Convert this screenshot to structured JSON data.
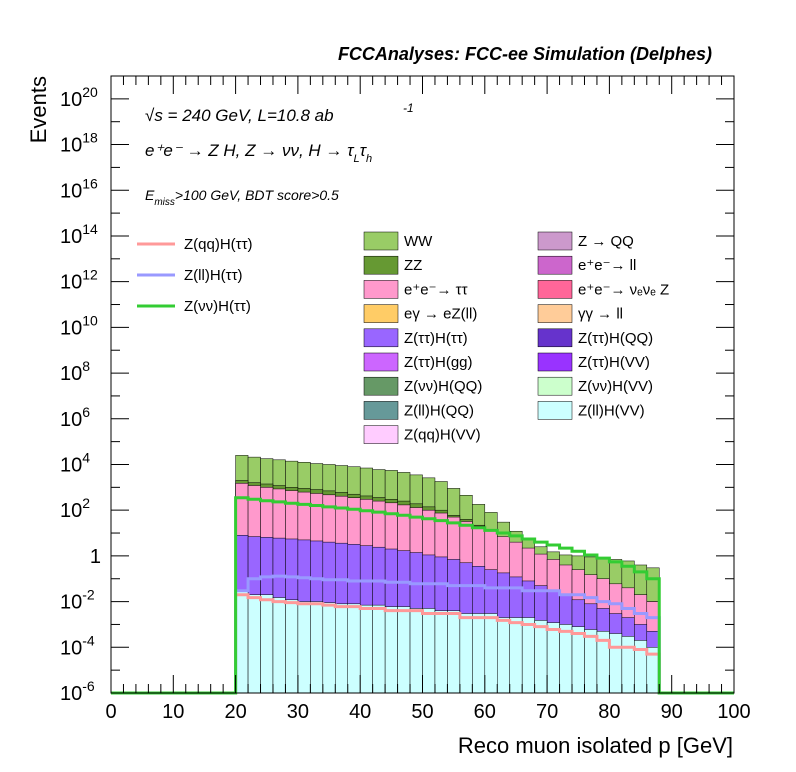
{
  "chart_data": {
    "type": "histogram",
    "title": "FCCAnalyses: FCC-ee Simulation (Delphes)",
    "xlabel": "Reco muon isolated p [GeV]",
    "ylabel": "Events",
    "xlim": [
      0,
      100
    ],
    "ylim": [
      1e-06,
      1e+21
    ],
    "yscale": "log",
    "bin_width": 2,
    "bin_edges_start": 20,
    "bin_edges_end": 88,
    "xticks": [
      "0",
      "10",
      "20",
      "30",
      "40",
      "50",
      "60",
      "70",
      "80",
      "90",
      "100"
    ],
    "yticks": [
      {
        "base": "10",
        "exp": "-6"
      },
      {
        "base": "10",
        "exp": "-4"
      },
      {
        "base": "10",
        "exp": "-2"
      },
      {
        "base": "1",
        "exp": ""
      },
      {
        "base": "10",
        "exp": "2"
      },
      {
        "base": "10",
        "exp": "4"
      },
      {
        "base": "10",
        "exp": "6"
      },
      {
        "base": "10",
        "exp": "8"
      },
      {
        "base": "10",
        "exp": "10"
      },
      {
        "base": "10",
        "exp": "12"
      },
      {
        "base": "10",
        "exp": "14"
      },
      {
        "base": "10",
        "exp": "16"
      },
      {
        "base": "10",
        "exp": "18"
      },
      {
        "base": "10",
        "exp": "20"
      }
    ],
    "annotations": {
      "energy": "√s = 240 GeV, L=10.8 ab",
      "energy_exp": "-1",
      "process": "e⁺e⁻ → Z H, Z → νν, H → τ",
      "process_sub1": "L",
      "process_tau": "τ",
      "process_sub2": "h",
      "cut_prefix": "E",
      "cut_sub": "miss",
      "cut_text": ">100 GeV, BDT score>0.5"
    },
    "stack_envelopes": [
      {
        "name": "WW",
        "color": "#99cc66",
        "values": [
          25000,
          21000,
          18000,
          16000,
          14000,
          12500,
          11000,
          10000,
          9000,
          8000,
          7000,
          6000,
          5500,
          4500,
          3500,
          2600,
          1800,
          900,
          450,
          180,
          80,
          30,
          12,
          5,
          2.5,
          1.5,
          1.1,
          1.0,
          0.9,
          0.8,
          0.7,
          0.6,
          0.4,
          0.3
        ]
      },
      {
        "name": "ZZ",
        "color": "#669933",
        "values": [
          2000,
          1600,
          1400,
          1200,
          1000,
          900,
          800,
          700,
          600,
          500,
          420,
          360,
          300,
          250,
          190,
          140,
          100,
          60,
          40,
          22,
          12,
          6,
          3,
          1.6,
          0.9,
          0.5,
          0.3,
          0.2,
          0.12,
          0.08,
          0.05,
          0.03,
          0.02,
          0.01
        ]
      },
      {
        "name": "e⁺e⁻→ ττ",
        "color": "#ff99cc",
        "values": [
          1500,
          1200,
          1000,
          850,
          720,
          620,
          540,
          470,
          410,
          350,
          300,
          250,
          210,
          170,
          130,
          100,
          75,
          50,
          32,
          20,
          12,
          7,
          4,
          2.2,
          1.2,
          0.7,
          0.4,
          0.25,
          0.15,
          0.1,
          0.06,
          0.04,
          0.02,
          0.01
        ]
      },
      {
        "name": "Z(ττ)H(ττ)",
        "color": "#9966ff",
        "values": [
          8,
          7,
          6.5,
          6,
          5.5,
          5,
          4.5,
          4,
          3.6,
          3.2,
          2.8,
          2.4,
          2,
          1.7,
          1.4,
          1.1,
          0.9,
          0.7,
          0.5,
          0.35,
          0.25,
          0.18,
          0.12,
          0.08,
          0.05,
          0.03,
          0.02,
          0.012,
          0.008,
          0.005,
          0.003,
          0.002,
          0.001,
          0.0005
        ]
      },
      {
        "name": "Z(ll)H(VV)",
        "color": "#ccffff",
        "values": [
          0.03,
          0.02,
          0.02,
          0.015,
          0.012,
          0.01,
          0.01,
          0.009,
          0.008,
          0.008,
          0.007,
          0.007,
          0.006,
          0.006,
          0.005,
          0.005,
          0.004,
          0.004,
          0.003,
          0.003,
          0.003,
          0.002,
          0.002,
          0.002,
          0.0015,
          0.0012,
          0.001,
          0.0008,
          0.0006,
          0.0005,
          0.0004,
          0.0003,
          0.0002,
          0.0001
        ]
      }
    ],
    "lines": [
      {
        "name": "Z(qq)H(ττ)",
        "color": "#ff9999",
        "values": [
          0.02,
          0.015,
          0.012,
          0.01,
          0.009,
          0.008,
          0.008,
          0.007,
          0.006,
          0.006,
          0.005,
          0.005,
          0.004,
          0.004,
          0.004,
          0.003,
          0.003,
          0.003,
          0.002,
          0.002,
          0.002,
          0.0015,
          0.0012,
          0.001,
          0.0008,
          0.0006,
          0.0005,
          0.0004,
          0.0003,
          0.0002,
          0.0001,
          0.0001,
          8e-05,
          5e-05
        ]
      },
      {
        "name": "Z(ll)H(ττ)",
        "color": "#9999ff",
        "values": [
          0.03,
          0.1,
          0.12,
          0.13,
          0.12,
          0.11,
          0.1,
          0.09,
          0.09,
          0.08,
          0.08,
          0.08,
          0.07,
          0.07,
          0.06,
          0.06,
          0.06,
          0.05,
          0.05,
          0.05,
          0.04,
          0.04,
          0.04,
          0.03,
          0.03,
          0.03,
          0.02,
          0.02,
          0.015,
          0.01,
          0.008,
          0.005,
          0.003,
          0.002
        ]
      },
      {
        "name": "Z(νν)H(ττ)",
        "color": "#33cc33",
        "values": [
          350,
          300,
          260,
          230,
          200,
          180,
          160,
          140,
          125,
          110,
          95,
          82,
          70,
          60,
          50,
          42,
          35,
          28,
          22,
          17,
          13,
          10,
          7.5,
          5.5,
          4,
          3,
          2.2,
          1.6,
          1.1,
          0.8,
          0.55,
          0.35,
          0.2,
          0.1
        ]
      }
    ],
    "legend": [
      {
        "name": "Z(qq)H(ττ)",
        "color": "#ff9999",
        "kind": "line"
      },
      {
        "name": "Z(ll)H(ττ)",
        "color": "#9999ff",
        "kind": "line"
      },
      {
        "name": "Z(νν)H(ττ)",
        "color": "#33cc33",
        "kind": "line"
      },
      {
        "name": "WW",
        "color": "#99cc66",
        "kind": "fill"
      },
      {
        "name": "Z → QQ",
        "color": "#cc99cc",
        "kind": "fill"
      },
      {
        "name": "ZZ",
        "color": "#669933",
        "kind": "fill"
      },
      {
        "name": "e⁺e⁻→ ll",
        "color": "#cc66cc",
        "kind": "fill"
      },
      {
        "name": "e⁺e⁻→ ττ",
        "color": "#ff99cc",
        "kind": "fill"
      },
      {
        "name": "e⁺e⁻→ νₑνₑ Z",
        "color": "#ff6699",
        "kind": "fill"
      },
      {
        "name": "eγ → eZ(ll)",
        "color": "#ffcc66",
        "kind": "fill"
      },
      {
        "name": "γγ → ll",
        "color": "#ffcc99",
        "kind": "fill"
      },
      {
        "name": "Z(ττ)H(ττ)",
        "color": "#9966ff",
        "kind": "fill"
      },
      {
        "name": "Z(ττ)H(QQ)",
        "color": "#6633cc",
        "kind": "fill"
      },
      {
        "name": "Z(ττ)H(gg)",
        "color": "#cc66ff",
        "kind": "fill"
      },
      {
        "name": "Z(ττ)H(VV)",
        "color": "#9933ff",
        "kind": "fill"
      },
      {
        "name": "Z(νν)H(QQ)",
        "color": "#669966",
        "kind": "fill"
      },
      {
        "name": "Z(νν)H(VV)",
        "color": "#ccffcc",
        "kind": "fill"
      },
      {
        "name": "Z(ll)H(QQ)",
        "color": "#669999",
        "kind": "fill"
      },
      {
        "name": "Z(ll)H(VV)",
        "color": "#ccffff",
        "kind": "fill"
      },
      {
        "name": "Z(qq)H(VV)",
        "color": "#ffccff",
        "kind": "fill"
      }
    ]
  }
}
